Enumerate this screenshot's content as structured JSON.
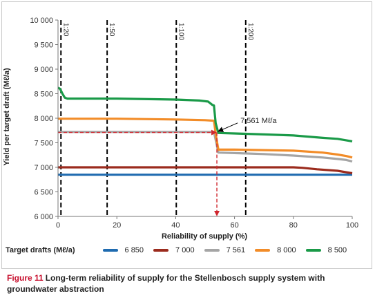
{
  "chart_data": {
    "type": "line",
    "xlabel": "Reliability of supply (%)",
    "ylabel": "Yield per target draft (Mℓ/a)",
    "xlim": [
      0,
      100
    ],
    "ylim": [
      6000,
      10000
    ],
    "x_ticks": [
      0,
      20,
      40,
      60,
      80,
      100
    ],
    "y_ticks": [
      6000,
      6500,
      7000,
      7500,
      8000,
      8500,
      9000,
      9500,
      10000
    ],
    "x_tick_labels": [
      "0",
      "20",
      "40",
      "60",
      "80",
      "100"
    ],
    "y_tick_labels": [
      "6 000",
      "6 500",
      "7 000",
      "7 500",
      "8 000",
      "8 500",
      "9 000",
      "9 500",
      "10 000"
    ],
    "grid": false,
    "legend_title": "Target drafts (Mℓ/a)",
    "legend_position": "bottom",
    "series": [
      {
        "name": "6 850",
        "color": "#1f6bb0",
        "x": [
          0,
          100
        ],
        "y": [
          6850,
          6850
        ]
      },
      {
        "name": "7 000",
        "color": "#9b2b1d",
        "x": [
          0,
          80,
          83,
          88,
          95,
          100
        ],
        "y": [
          7000,
          7000,
          6990,
          6960,
          6930,
          6880
        ]
      },
      {
        "name": "7 561",
        "color": "#a5a5a5",
        "x": [
          0,
          53,
          53.8,
          54.5,
          60,
          70,
          80,
          90,
          95,
          98,
          100
        ],
        "y": [
          7721,
          7721,
          7500,
          7300,
          7290,
          7270,
          7240,
          7200,
          7170,
          7150,
          7120
        ]
      },
      {
        "name": "8 000",
        "color": "#f28c28",
        "x": [
          0,
          20,
          40,
          50,
          53,
          53.8,
          54.5,
          60,
          80,
          90,
          95,
          98,
          100
        ],
        "y": [
          7990,
          7990,
          7975,
          7960,
          7950,
          7600,
          7360,
          7360,
          7340,
          7300,
          7260,
          7230,
          7200
        ]
      },
      {
        "name": "8 500",
        "color": "#1a9a48",
        "x": [
          0,
          0.7,
          1.5,
          2.3,
          3.2,
          20,
          40,
          48,
          51,
          52.5,
          53,
          53.6,
          54.5,
          60,
          70,
          80,
          90,
          95,
          100
        ],
        "y": [
          8620,
          8600,
          8500,
          8420,
          8400,
          8400,
          8380,
          8360,
          8340,
          8270,
          8260,
          7900,
          7700,
          7690,
          7670,
          7650,
          7600,
          7580,
          7530
        ]
      }
    ],
    "vertical_markers": [
      {
        "x": 1,
        "label": "1:20"
      },
      {
        "x": 16.7,
        "label": "1:50"
      },
      {
        "x": 40.2,
        "label": "1:100"
      },
      {
        "x": 63.8,
        "label": "1:200"
      }
    ],
    "reference_arrows": [
      {
        "type": "horizontal",
        "from_x": 0,
        "to_x": 54,
        "y": 7710,
        "color": "#d0262e"
      },
      {
        "type": "vertical",
        "x": 54,
        "from_y": 7710,
        "to_y": 6030,
        "color": "#d0262e"
      }
    ],
    "annotation": {
      "text": "7 561 Mℓ/a",
      "point_x": 54,
      "point_y": 7710,
      "text_x": 62,
      "text_y": 7960
    }
  },
  "caption": {
    "label": "Figure 11",
    "text": "Long-term reliability of supply for the Stellenbosch supply system with groundwater abstraction"
  }
}
